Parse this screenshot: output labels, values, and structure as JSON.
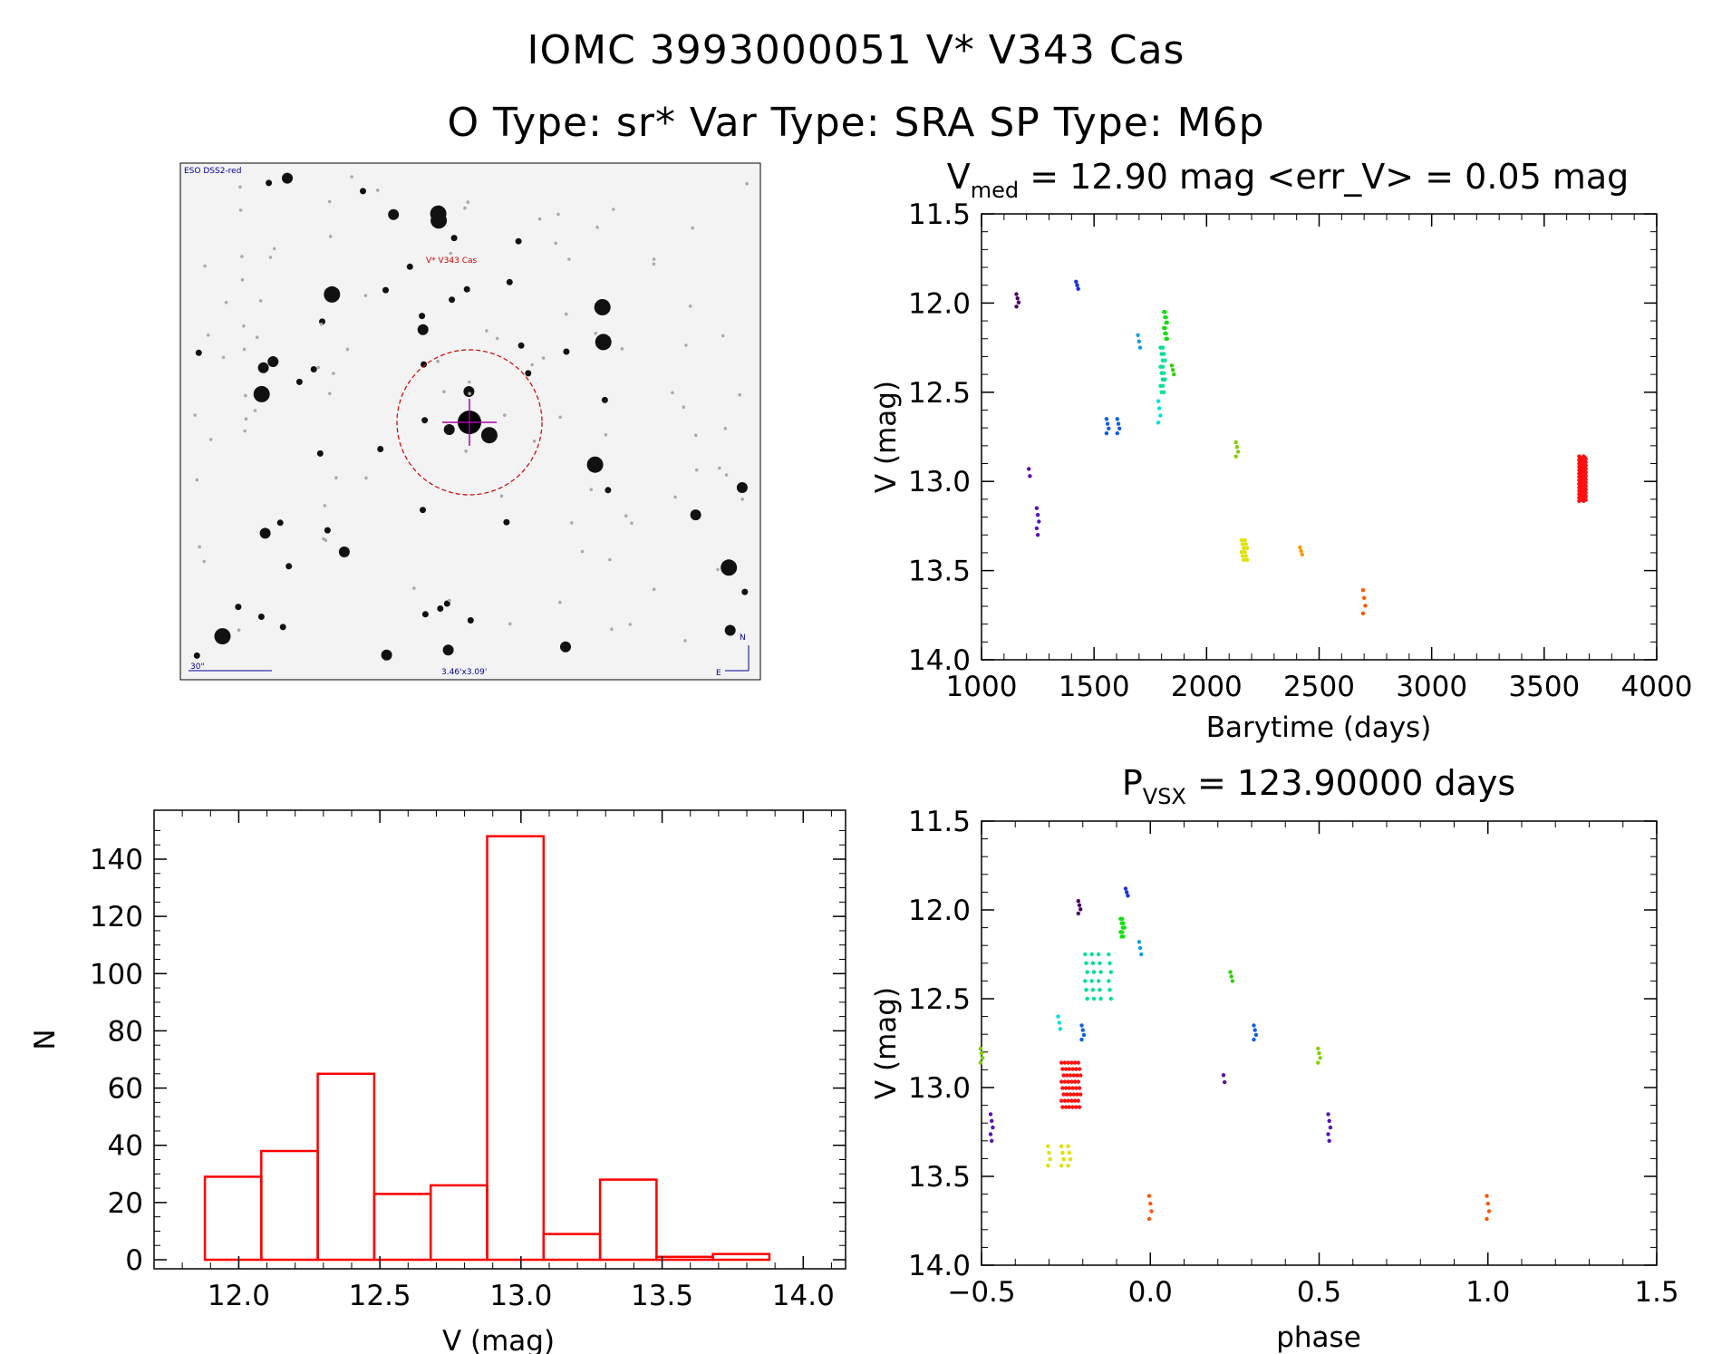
{
  "header": {
    "line1": "IOMC 3993000051   V* V343 Cas",
    "line2": "O Type: sr*  Var Type: SRA  SP Type: M6p"
  },
  "finder": {
    "survey_label": "ESO DSS2-red",
    "target_label": "V* V343 Cas",
    "scale_label": "30\"",
    "fov_label": "3.46'x3.09'",
    "north": "N",
    "east": "E"
  },
  "colors": {
    "histogram": "#ff0000",
    "circle": "#cc0000",
    "crosshair": "#aa00aa",
    "image_labels": "#000099"
  },
  "chart_data": [
    {
      "id": "lightcurve",
      "type": "scatter",
      "title_main": "V",
      "title_sub": "med",
      "title_rest": " = 12.90 mag <err_V> = 0.05 mag",
      "xlabel": "Barytime (days)",
      "ylabel": "V (mag)",
      "xlim": [
        1000,
        4000
      ],
      "ylim": [
        14.0,
        11.5
      ],
      "y_inverted": true,
      "xticks": [
        1000,
        1500,
        2000,
        2500,
        3000,
        3500,
        4000
      ],
      "xtick_labels": [
        "1000",
        "1500",
        "2000",
        "2500",
        "3000",
        "3500",
        "4000"
      ],
      "yticks": [
        11.5,
        12.0,
        12.5,
        13.0,
        13.5,
        14.0
      ],
      "ytick_labels": [
        "11.5",
        "12.0",
        "12.5",
        "13.0",
        "13.5",
        "14.0"
      ],
      "series": [
        {
          "color": "#4b0066",
          "x": [
            1160
          ],
          "y_range": [
            11.95,
            12.02
          ],
          "n": 4
        },
        {
          "color": "#5a10a0",
          "x": [
            1215
          ],
          "y_range": [
            12.93,
            12.97
          ],
          "n": 2
        },
        {
          "color": "#5a10b8",
          "x": [
            1250
          ],
          "y_range": [
            13.15,
            13.3
          ],
          "n": 5
        },
        {
          "color": "#1a30e0",
          "x": [
            1425
          ],
          "y_range": [
            11.88,
            11.92
          ],
          "n": 3
        },
        {
          "color": "#1060e0",
          "x": [
            1560,
            1608
          ],
          "y_range": [
            12.65,
            12.73
          ],
          "n": 4
        },
        {
          "color": "#10a0e0",
          "x": [
            1700
          ],
          "y_range": [
            12.18,
            12.25
          ],
          "n": 3
        },
        {
          "color": "#00e0e0",
          "x": [
            1790
          ],
          "y_range": [
            12.55,
            12.67
          ],
          "n": 4
        },
        {
          "color": "#00e090",
          "x": [
            1800,
            1810
          ],
          "y_range": [
            12.25,
            12.5
          ],
          "n": 8
        },
        {
          "color": "#10e010",
          "x": [
            1815,
            1820
          ],
          "y_range": [
            12.05,
            12.2
          ],
          "n": 6
        },
        {
          "color": "#30d000",
          "x": [
            1850
          ],
          "y_range": [
            12.35,
            12.4
          ],
          "n": 3
        },
        {
          "color": "#80d000",
          "x": [
            2135
          ],
          "y_range": [
            12.78,
            12.86
          ],
          "n": 4
        },
        {
          "color": "#e0e000",
          "x": [
            2160,
            2175
          ],
          "y_range": [
            13.33,
            13.44
          ],
          "n": 6
        },
        {
          "color": "#ff9900",
          "x": [
            2420
          ],
          "y_range": [
            13.37,
            13.41
          ],
          "n": 3
        },
        {
          "color": "#ff5500",
          "x": [
            2700
          ],
          "y_range": [
            13.61,
            13.74
          ],
          "n": 4
        },
        {
          "color": "#ff1010",
          "x": [
            3660,
            3680
          ],
          "y_range": [
            12.86,
            13.11
          ],
          "n": 40
        }
      ]
    },
    {
      "id": "phased",
      "type": "scatter",
      "title_main": "P",
      "title_sub": "VSX",
      "title_rest": " = 123.90000 days",
      "xlabel": "phase",
      "ylabel": "V (mag)",
      "xlim": [
        -0.5,
        1.5
      ],
      "ylim": [
        14.0,
        11.5
      ],
      "y_inverted": true,
      "xticks": [
        -0.5,
        0.0,
        0.5,
        1.0,
        1.5
      ],
      "xtick_labels": [
        "−0.5",
        "0.0",
        "0.5",
        "1.0",
        "1.5"
      ],
      "yticks": [
        11.5,
        12.0,
        12.5,
        13.0,
        13.5,
        14.0
      ],
      "ytick_labels": [
        "11.5",
        "12.0",
        "12.5",
        "13.0",
        "13.5",
        "14.0"
      ],
      "series": [
        {
          "color": "#4b0066",
          "x": [
            -0.21
          ],
          "y_range": [
            11.95,
            12.02
          ],
          "n": 4
        },
        {
          "color": "#5a10a0",
          "x": [
            0.22
          ],
          "y_range": [
            12.93,
            12.97
          ],
          "n": 2
        },
        {
          "color": "#5a10b8",
          "x": [
            -0.47,
            0.53
          ],
          "y_range": [
            13.15,
            13.3
          ],
          "n": 5
        },
        {
          "color": "#1a30e0",
          "x": [
            -0.07
          ],
          "y_range": [
            11.88,
            11.92
          ],
          "n": 3
        },
        {
          "color": "#1060e0",
          "x": [
            -0.2,
            0.31
          ],
          "y_range": [
            12.65,
            12.73
          ],
          "n": 4
        },
        {
          "color": "#10a0e0",
          "x": [
            -0.03
          ],
          "y_range": [
            12.18,
            12.25
          ],
          "n": 3
        },
        {
          "color": "#00e0e0",
          "x": [
            -0.27
          ],
          "y_range": [
            12.6,
            12.67
          ],
          "n": 3
        },
        {
          "color": "#00e090",
          "x": [
            -0.19,
            -0.17,
            -0.15,
            -0.12
          ],
          "y_range": [
            12.25,
            12.5
          ],
          "n": 6
        },
        {
          "color": "#10e010",
          "x": [
            -0.085,
            -0.08
          ],
          "y_range": [
            12.05,
            12.15
          ],
          "n": 5
        },
        {
          "color": "#30d000",
          "x": [
            0.24
          ],
          "y_range": [
            12.35,
            12.4
          ],
          "n": 3
        },
        {
          "color": "#80d000",
          "x": [
            -0.5,
            0.5
          ],
          "y_range": [
            12.78,
            12.86
          ],
          "n": 4
        },
        {
          "color": "#e0e000",
          "x": [
            -0.3,
            -0.26,
            -0.24
          ],
          "y_range": [
            13.33,
            13.44
          ],
          "n": 4
        },
        {
          "color": "#ff5500",
          "x": [
            0.0,
            1.0
          ],
          "y_range": [
            13.61,
            13.74
          ],
          "n": 4
        },
        {
          "color": "#ff1010",
          "x": [
            -0.26,
            -0.25,
            -0.24,
            -0.23,
            -0.22,
            -0.21
          ],
          "y_range": [
            12.86,
            13.11
          ],
          "n": 8
        }
      ]
    },
    {
      "id": "histogram",
      "type": "bar",
      "xlabel": "V (mag)",
      "ylabel": "N",
      "xlim": [
        11.7,
        14.15
      ],
      "ylim": [
        0,
        150
      ],
      "xticks": [
        12.0,
        12.5,
        13.0,
        13.5,
        14.0
      ],
      "xtick_labels": [
        "12.0",
        "12.5",
        "13.0",
        "13.5",
        "14.0"
      ],
      "yticks": [
        0,
        20,
        40,
        60,
        80,
        100,
        120,
        140
      ],
      "ytick_labels": [
        "0",
        "20",
        "40",
        "60",
        "80",
        "100",
        "120",
        "140"
      ],
      "bin_edges": [
        11.88,
        12.08,
        12.28,
        12.48,
        12.68,
        12.88,
        13.08,
        13.28,
        13.48,
        13.68,
        13.88
      ],
      "values": [
        29,
        38,
        65,
        23,
        26,
        148,
        9,
        28,
        1,
        2
      ]
    }
  ]
}
